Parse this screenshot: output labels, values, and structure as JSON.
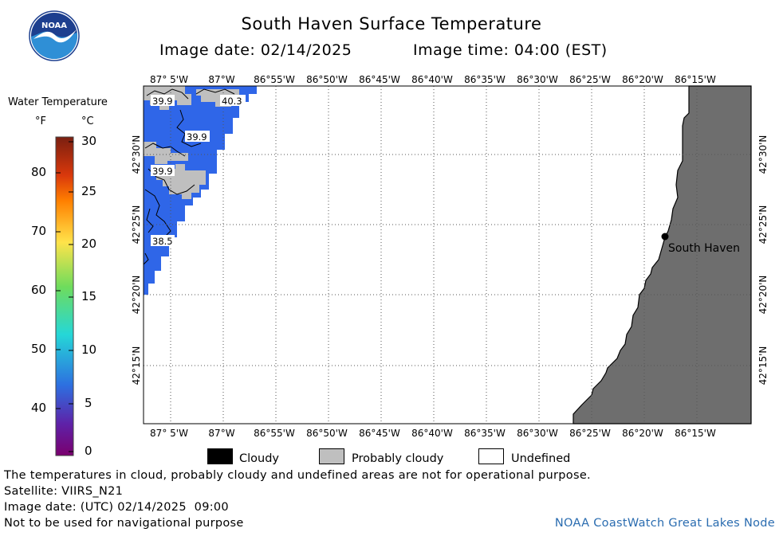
{
  "header": {
    "title": "South Haven Surface Temperature",
    "image_date_label": "Image date: 02/14/2025",
    "image_time_label": "Image time: 04:00 (EST)"
  },
  "logo": {
    "text": "NOAA",
    "colors": {
      "outer": "#ffffff",
      "top": "#1d3f8f",
      "bottom": "#2f8fd6",
      "bird": "#ffffff"
    }
  },
  "legend": {
    "title": "Water Temperature",
    "unit_f": "°F",
    "unit_c": "°C",
    "fahrenheit_ticks": [
      "80",
      "70",
      "60",
      "50",
      "40"
    ],
    "celsius_ticks": [
      "30",
      "25",
      "20",
      "15",
      "10",
      "5",
      "0"
    ],
    "colors": [
      "#e2002a",
      "#ff7f00",
      "#ffe34a",
      "#6fdc5c",
      "#25d7d7",
      "#2d6fe0",
      "#5e22a8",
      "#7a006e"
    ]
  },
  "map": {
    "lon_labels": [
      "87° 5'W",
      "87°W",
      "86°55'W",
      "86°50'W",
      "86°45'W",
      "86°40'W",
      "86°35'W",
      "86°30'W",
      "86°25'W",
      "86°20'W",
      "86°15'W"
    ],
    "lat_labels": [
      "42°30'N",
      "42°25'N",
      "42°20'N",
      "42°15'N"
    ],
    "city": "South Haven",
    "sst_labels": [
      "39.9",
      "40.3",
      "39.9",
      "39.9",
      "38.5"
    ],
    "colors": {
      "water_cold": "#2f66e8",
      "probably_cloudy": "#bfbfbf",
      "land": "#6e6e6e",
      "grid": "#555555"
    }
  },
  "key": {
    "cloudy": "Cloudy",
    "probably_cloudy": "Probably cloudy",
    "undefined": "Undefined"
  },
  "footer": {
    "disclaimer": "The temperatures in cloud, probably cloudy and undefined areas are not for operational purpose.",
    "satellite": "Satellite: VIIRS_N21",
    "utc_date": "Image date: (UTC) 02/14/2025  09:00",
    "nav_warning": "Not to be used for navigational purpose",
    "credit": "NOAA CoastWatch Great Lakes Node"
  }
}
